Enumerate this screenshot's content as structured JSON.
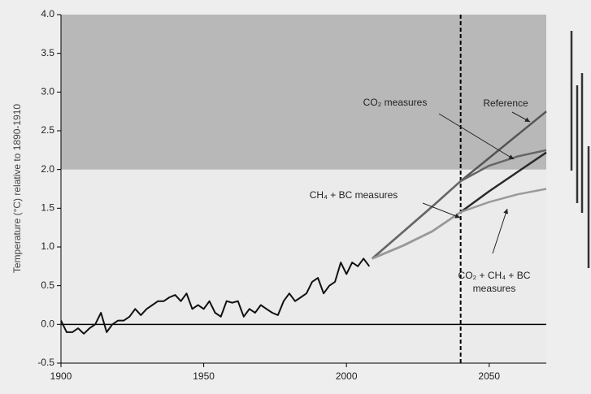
{
  "chart_data": {
    "type": "line",
    "ylabel": "Temperature (°C) relative to 1890-1910",
    "xlim": [
      1900,
      2070
    ],
    "ylim": [
      -0.5,
      4.0
    ],
    "xticks": [
      1900,
      1950,
      2000,
      2050
    ],
    "yticks": [
      {
        "value": -0.5,
        "label": "-0.5"
      },
      {
        "value": 0,
        "label": "0.0"
      },
      {
        "value": 0.5,
        "label": "0.5"
      },
      {
        "value": 1,
        "label": "1.0"
      },
      {
        "value": 1.5,
        "label": "1.5"
      },
      {
        "value": 2,
        "label": "2.0"
      },
      {
        "value": 2.5,
        "label": "2.5"
      },
      {
        "value": 3,
        "label": "3.0"
      },
      {
        "value": 3.5,
        "label": "3.5"
      },
      {
        "value": 4,
        "label": "4.0"
      }
    ],
    "shade_above": 2.0,
    "vline": 2040,
    "series": [
      {
        "color": "#111111",
        "x": [
          1900,
          1902,
          1904,
          1906,
          1908,
          1910,
          1912,
          1914,
          1916,
          1918,
          1920,
          1922,
          1924,
          1926,
          1928,
          1930,
          1932,
          1934,
          1936,
          1938,
          1940,
          1942,
          1944,
          1946,
          1948,
          1950,
          1952,
          1954,
          1956,
          1958,
          1960,
          1962,
          1964,
          1966,
          1968,
          1970,
          1972,
          1974,
          1976,
          1978,
          1980,
          1982,
          1984,
          1986,
          1988,
          1990,
          1992,
          1994,
          1996,
          1998,
          2000,
          2002,
          2004,
          2006,
          2008
        ],
        "values": [
          0.05,
          -0.1,
          -0.1,
          -0.05,
          -0.12,
          -0.05,
          0.0,
          0.15,
          -0.1,
          0.0,
          0.05,
          0.05,
          0.1,
          0.2,
          0.12,
          0.2,
          0.25,
          0.3,
          0.3,
          0.35,
          0.38,
          0.3,
          0.4,
          0.2,
          0.25,
          0.2,
          0.3,
          0.15,
          0.1,
          0.3,
          0.28,
          0.3,
          0.1,
          0.2,
          0.15,
          0.25,
          0.2,
          0.15,
          0.12,
          0.3,
          0.4,
          0.3,
          0.35,
          0.4,
          0.55,
          0.6,
          0.4,
          0.5,
          0.55,
          0.8,
          0.65,
          0.8,
          0.75,
          0.85,
          0.75
        ]
      },
      {
        "color": "#555555",
        "x": [
          2009,
          2020,
          2030,
          2040,
          2050,
          2060,
          2070
        ],
        "values": [
          0.85,
          1.2,
          1.52,
          1.85,
          2.15,
          2.45,
          2.75
        ]
      },
      {
        "color": "#666666",
        "x": [
          2009,
          2020,
          2030,
          2040,
          2050,
          2060,
          2070
        ],
        "values": [
          0.85,
          1.2,
          1.52,
          1.85,
          2.05,
          2.17,
          2.25
        ]
      },
      {
        "color": "#2a2a2a",
        "x": [
          2009,
          2020,
          2030,
          2040,
          2050,
          2060,
          2070
        ],
        "values": [
          0.85,
          1.02,
          1.2,
          1.45,
          1.72,
          1.97,
          2.22
        ]
      },
      {
        "color": "#9a9a9a",
        "x": [
          2009,
          2020,
          2030,
          2040,
          2050,
          2060,
          2070
        ],
        "values": [
          0.85,
          1.02,
          1.2,
          1.45,
          1.58,
          1.68,
          1.75
        ]
      }
    ],
    "annotations": [
      {
        "lines": [
          "CO₂ measures"
        ]
      },
      {
        "lines": [
          "Reference"
        ]
      },
      {
        "lines": [
          "CH₄ + BC measures"
        ]
      },
      {
        "lines": [
          "CO₂ + CH₄ + BC",
          "measures"
        ]
      }
    ]
  }
}
